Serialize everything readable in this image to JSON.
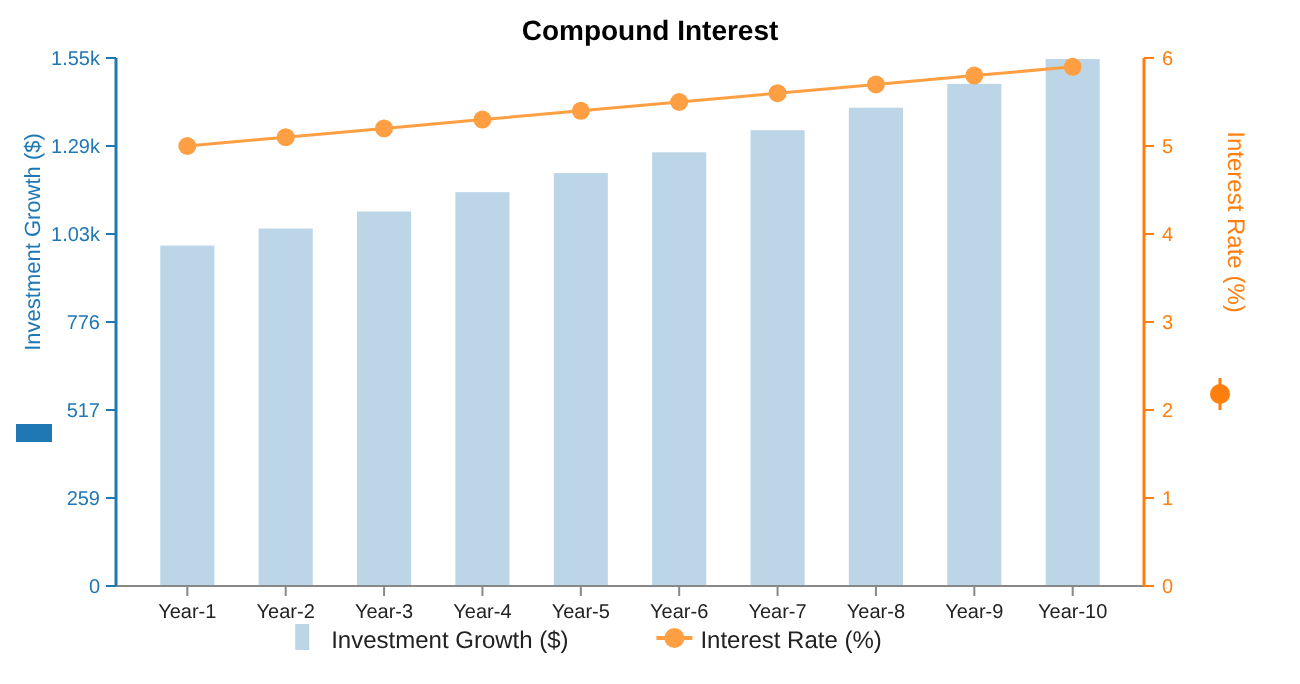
{
  "chart_data": {
    "type": "bar",
    "title": "Compound Interest",
    "categories": [
      "Year-1",
      "Year-2",
      "Year-3",
      "Year-4",
      "Year-5",
      "Year-6",
      "Year-7",
      "Year-8",
      "Year-9",
      "Year-10"
    ],
    "series": [
      {
        "name": "Investment Growth ($)",
        "color": "#bcd6e8",
        "values": [
          1000,
          1050,
          1100,
          1157,
          1213,
          1274,
          1339,
          1405,
          1475,
          1548
        ]
      },
      {
        "name": "Interest Rate (%)",
        "type": "line",
        "axis": "y2",
        "color": "#ff9f43",
        "marker": "circle",
        "values": [
          5.0,
          5.1,
          5.2,
          5.3,
          5.4,
          5.5,
          5.6,
          5.7,
          5.8,
          5.9
        ]
      }
    ],
    "ylabel": "Investment Growth ($)",
    "y2label": "Interest Rate (%)",
    "ylim": [
      0,
      1551
    ],
    "yticks": [
      0,
      {
        "value": 258.5,
        "label": "259"
      },
      517,
      {
        "value": 775.5,
        "label": "776"
      },
      {
        "value": 1034,
        "label": "1.03k"
      },
      {
        "value": 1292.5,
        "label": "1.29k"
      },
      {
        "value": 1551,
        "label": "1.55k"
      }
    ],
    "y2lim": [
      0,
      6
    ],
    "y2ticks": [
      0,
      1,
      2,
      3,
      4,
      5,
      6
    ],
    "legend": "bottom",
    "grid": false
  }
}
